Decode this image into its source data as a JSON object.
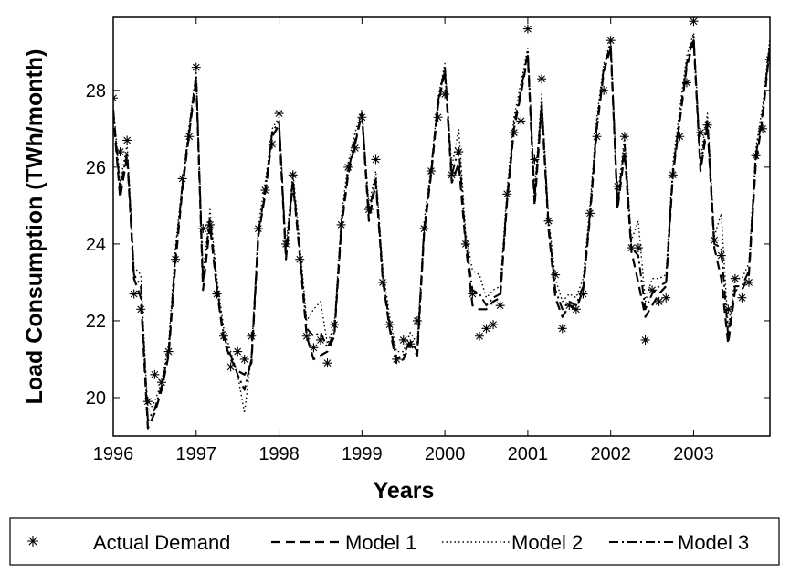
{
  "chart_data": {
    "type": "line",
    "title": "",
    "xlabel": "Years",
    "ylabel": "Load Consumption (TWh/month)",
    "xlim": [
      1996,
      2003.92
    ],
    "ylim": [
      19,
      29.9
    ],
    "xticks": [
      1996,
      1997,
      1998,
      1999,
      2000,
      2001,
      2002,
      2003
    ],
    "yticks": [
      20,
      22,
      24,
      26,
      28
    ],
    "grid": false,
    "legend": "bottom",
    "series": [
      {
        "name": "Actual Demand",
        "style": "markers",
        "marker": "asterisk",
        "x": [
          1996.0,
          1996.083,
          1996.167,
          1996.25,
          1996.333,
          1996.417,
          1996.5,
          1996.583,
          1996.667,
          1996.75,
          1996.833,
          1996.917,
          1997.0,
          1997.083,
          1997.167,
          1997.25,
          1997.333,
          1997.417,
          1997.5,
          1997.583,
          1997.667,
          1997.75,
          1997.833,
          1997.917,
          1998.0,
          1998.083,
          1998.167,
          1998.25,
          1998.333,
          1998.417,
          1998.5,
          1998.583,
          1998.667,
          1998.75,
          1998.833,
          1998.917,
          1999.0,
          1999.083,
          1999.167,
          1999.25,
          1999.333,
          1999.417,
          1999.5,
          1999.583,
          1999.667,
          1999.75,
          1999.833,
          1999.917,
          2000.0,
          2000.083,
          2000.167,
          2000.25,
          2000.333,
          2000.417,
          2000.5,
          2000.583,
          2000.667,
          2000.75,
          2000.833,
          2000.917,
          2001.0,
          2001.083,
          2001.167,
          2001.25,
          2001.333,
          2001.417,
          2001.5,
          2001.583,
          2001.667,
          2001.75,
          2001.833,
          2001.917,
          2002.0,
          2002.083,
          2002.167,
          2002.25,
          2002.333,
          2002.417,
          2002.5,
          2002.583,
          2002.667,
          2002.75,
          2002.833,
          2002.917,
          2003.0,
          2003.083,
          2003.167,
          2003.25,
          2003.333,
          2003.417,
          2003.5,
          2003.583,
          2003.667,
          2003.75,
          2003.833,
          2003.917
        ],
        "values": [
          27.8,
          26.4,
          26.7,
          22.7,
          22.3,
          19.9,
          20.6,
          20.4,
          21.2,
          23.6,
          25.7,
          26.8,
          28.6,
          24.4,
          24.5,
          22.7,
          21.6,
          20.8,
          21.2,
          21.0,
          21.6,
          24.4,
          25.4,
          26.6,
          27.4,
          24.0,
          25.8,
          23.6,
          21.6,
          21.3,
          21.5,
          20.9,
          21.9,
          24.5,
          26.0,
          26.5,
          27.3,
          24.9,
          26.2,
          23.0,
          21.9,
          21.0,
          21.5,
          21.4,
          22.0,
          24.4,
          25.9,
          27.3,
          27.9,
          25.8,
          26.4,
          24.0,
          22.7,
          21.6,
          21.8,
          21.9,
          22.4,
          25.3,
          26.9,
          27.2,
          29.6,
          26.2,
          28.3,
          24.6,
          23.2,
          21.8,
          22.4,
          22.3,
          22.7,
          24.8,
          26.8,
          28.0,
          29.3,
          25.5,
          26.8,
          23.9,
          23.9,
          21.5,
          22.8,
          22.5,
          22.6,
          25.8,
          26.8,
          28.2,
          29.8,
          26.9,
          27.1,
          24.1,
          23.7,
          22.3,
          23.1,
          22.6,
          23.0,
          26.3,
          27.0,
          28.8
        ]
      },
      {
        "name": "Model 1",
        "style": "dashed",
        "x": [
          1996.0,
          1996.083,
          1996.167,
          1996.25,
          1996.333,
          1996.417,
          1996.5,
          1996.583,
          1996.667,
          1996.75,
          1996.833,
          1996.917,
          1997.0,
          1997.083,
          1997.167,
          1997.25,
          1997.333,
          1997.417,
          1997.5,
          1997.583,
          1997.667,
          1997.75,
          1997.833,
          1997.917,
          1998.0,
          1998.083,
          1998.167,
          1998.25,
          1998.333,
          1998.417,
          1998.5,
          1998.583,
          1998.667,
          1998.75,
          1998.833,
          1998.917,
          1999.0,
          1999.083,
          1999.167,
          1999.25,
          1999.333,
          1999.417,
          1999.5,
          1999.583,
          1999.667,
          1999.75,
          1999.833,
          1999.917,
          2000.0,
          2000.083,
          2000.167,
          2000.25,
          2000.333,
          2000.417,
          2000.5,
          2000.583,
          2000.667,
          2000.75,
          2000.833,
          2000.917,
          2001.0,
          2001.083,
          2001.167,
          2001.25,
          2001.333,
          2001.417,
          2001.5,
          2001.583,
          2001.667,
          2001.75,
          2001.833,
          2001.917,
          2002.0,
          2002.083,
          2002.167,
          2002.25,
          2002.333,
          2002.417,
          2002.5,
          2002.583,
          2002.667,
          2002.75,
          2002.833,
          2002.917,
          2003.0,
          2003.083,
          2003.167,
          2003.25,
          2003.333,
          2003.417,
          2003.5,
          2003.583,
          2003.667,
          2003.75,
          2003.833,
          2003.917
        ],
        "values": [
          27.4,
          25.2,
          26.3,
          23.1,
          22.6,
          19.2,
          19.6,
          20.2,
          21.1,
          23.5,
          25.4,
          26.9,
          28.3,
          22.8,
          24.5,
          22.8,
          21.5,
          21.0,
          20.7,
          20.6,
          20.9,
          24.2,
          25.3,
          26.8,
          27.1,
          23.6,
          25.6,
          23.7,
          21.6,
          21.0,
          21.1,
          21.2,
          21.6,
          24.4,
          25.8,
          26.6,
          27.4,
          24.6,
          25.6,
          23.1,
          21.8,
          20.9,
          21.0,
          21.4,
          21.1,
          24.3,
          25.8,
          27.6,
          28.5,
          25.6,
          26.1,
          24.0,
          22.4,
          22.3,
          22.3,
          22.5,
          22.6,
          25.1,
          27.0,
          27.9,
          28.9,
          25.0,
          27.6,
          24.4,
          22.6,
          22.1,
          22.4,
          22.3,
          22.8,
          24.7,
          27.0,
          28.5,
          29.1,
          24.9,
          26.4,
          23.8,
          23.0,
          22.1,
          22.4,
          22.7,
          22.9,
          25.8,
          27.2,
          28.6,
          29.3,
          25.9,
          27.1,
          23.9,
          23.1,
          21.4,
          22.8,
          22.8,
          23.2,
          26.1,
          27.3,
          29.1
        ]
      },
      {
        "name": "Model 2",
        "style": "dotted",
        "x": [
          1996.0,
          1996.083,
          1996.167,
          1996.25,
          1996.333,
          1996.417,
          1996.5,
          1996.583,
          1996.667,
          1996.75,
          1996.833,
          1996.917,
          1997.0,
          1997.083,
          1997.167,
          1997.25,
          1997.333,
          1997.417,
          1997.5,
          1997.583,
          1997.667,
          1997.75,
          1997.833,
          1997.917,
          1998.0,
          1998.083,
          1998.167,
          1998.25,
          1998.333,
          1998.417,
          1998.5,
          1998.583,
          1998.667,
          1998.75,
          1998.833,
          1998.917,
          1999.0,
          1999.083,
          1999.167,
          1999.25,
          1999.333,
          1999.417,
          1999.5,
          1999.583,
          1999.667,
          1999.75,
          1999.833,
          1999.917,
          2000.0,
          2000.083,
          2000.167,
          2000.25,
          2000.333,
          2000.417,
          2000.5,
          2000.583,
          2000.667,
          2000.75,
          2000.833,
          2000.917,
          2001.0,
          2001.083,
          2001.167,
          2001.25,
          2001.333,
          2001.417,
          2001.5,
          2001.583,
          2001.667,
          2001.75,
          2001.833,
          2001.917,
          2002.0,
          2002.083,
          2002.167,
          2002.25,
          2002.333,
          2002.417,
          2002.5,
          2002.583,
          2002.667,
          2002.75,
          2002.833,
          2002.917,
          2003.0,
          2003.083,
          2003.167,
          2003.25,
          2003.333,
          2003.417,
          2003.5,
          2003.583,
          2003.667,
          2003.75,
          2003.833,
          2003.917
        ],
        "values": [
          27.6,
          25.6,
          26.6,
          23.4,
          23.2,
          19.6,
          19.9,
          20.4,
          21.4,
          23.9,
          25.6,
          27.1,
          28.5,
          23.2,
          24.9,
          23.1,
          21.8,
          21.2,
          20.6,
          19.6,
          21.1,
          24.5,
          25.6,
          27.0,
          27.3,
          23.9,
          25.9,
          24.0,
          22.0,
          22.3,
          22.5,
          21.4,
          21.9,
          24.7,
          26.1,
          26.9,
          27.5,
          25.0,
          25.9,
          23.4,
          22.1,
          21.2,
          21.2,
          21.7,
          21.4,
          24.6,
          26.0,
          27.8,
          28.7,
          26.0,
          27.0,
          24.3,
          23.3,
          23.2,
          22.6,
          22.8,
          22.9,
          25.4,
          27.3,
          28.2,
          29.1,
          25.4,
          27.9,
          24.7,
          23.1,
          22.5,
          22.7,
          22.6,
          23.1,
          25.0,
          27.3,
          28.7,
          29.3,
          25.2,
          26.8,
          24.1,
          24.6,
          22.5,
          23.1,
          23.1,
          23.2,
          26.1,
          27.5,
          28.9,
          29.5,
          26.2,
          27.4,
          24.2,
          24.8,
          21.8,
          23.1,
          23.1,
          23.5,
          26.5,
          27.6,
          29.3
        ]
      },
      {
        "name": "Model 3",
        "style": "dashdot",
        "x": [
          1996.0,
          1996.083,
          1996.167,
          1996.25,
          1996.333,
          1996.417,
          1996.5,
          1996.583,
          1996.667,
          1996.75,
          1996.833,
          1996.917,
          1997.0,
          1997.083,
          1997.167,
          1997.25,
          1997.333,
          1997.417,
          1997.5,
          1997.583,
          1997.667,
          1997.75,
          1997.833,
          1997.917,
          1998.0,
          1998.083,
          1998.167,
          1998.25,
          1998.333,
          1998.417,
          1998.5,
          1998.583,
          1998.667,
          1998.75,
          1998.833,
          1998.917,
          1999.0,
          1999.083,
          1999.167,
          1999.25,
          1999.333,
          1999.417,
          1999.5,
          1999.583,
          1999.667,
          1999.75,
          1999.833,
          1999.917,
          2000.0,
          2000.083,
          2000.167,
          2000.25,
          2000.333,
          2000.417,
          2000.5,
          2000.583,
          2000.667,
          2000.75,
          2000.833,
          2000.917,
          2001.0,
          2001.083,
          2001.167,
          2001.25,
          2001.333,
          2001.417,
          2001.5,
          2001.583,
          2001.667,
          2001.75,
          2001.833,
          2001.917,
          2002.0,
          2002.083,
          2002.167,
          2002.25,
          2002.333,
          2002.417,
          2002.5,
          2002.583,
          2002.667,
          2002.75,
          2002.833,
          2002.917,
          2003.0,
          2003.083,
          2003.167,
          2003.25,
          2003.333,
          2003.417,
          2003.5,
          2003.583,
          2003.667,
          2003.75,
          2003.833,
          2003.917
        ],
        "values": [
          27.5,
          25.4,
          26.4,
          23.2,
          22.9,
          19.4,
          19.7,
          20.3,
          21.2,
          23.7,
          25.5,
          27.0,
          28.4,
          23.0,
          24.7,
          22.9,
          21.6,
          21.1,
          20.6,
          20.2,
          21.0,
          24.3,
          25.4,
          26.9,
          27.2,
          23.7,
          25.7,
          23.8,
          21.8,
          21.6,
          21.7,
          21.3,
          21.7,
          24.5,
          25.9,
          26.7,
          27.4,
          24.8,
          25.7,
          23.2,
          21.9,
          21.0,
          21.1,
          21.5,
          21.2,
          24.4,
          25.9,
          27.7,
          28.6,
          25.8,
          26.5,
          24.1,
          22.8,
          22.7,
          22.4,
          22.6,
          22.7,
          25.2,
          27.1,
          28.0,
          29.0,
          25.2,
          27.7,
          24.5,
          22.8,
          22.3,
          22.5,
          22.4,
          22.9,
          24.8,
          27.1,
          28.6,
          29.2,
          25.0,
          26.6,
          23.9,
          23.7,
          22.3,
          22.7,
          22.9,
          23.0,
          25.9,
          27.3,
          28.7,
          29.4,
          26.0,
          27.2,
          24.0,
          23.9,
          21.6,
          22.9,
          22.9,
          23.3,
          26.3,
          27.4,
          29.2
        ]
      }
    ]
  }
}
